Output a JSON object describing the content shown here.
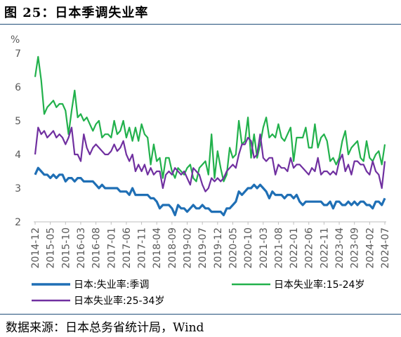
{
  "title": "图 25：日本季调失业率",
  "source": "数据来源：日本总务省统计局，Wind",
  "chart_data": {
    "type": "line",
    "ylabel": "%",
    "ylim": [
      2,
      7
    ],
    "y_ticks": [
      "2",
      "3",
      "4",
      "5",
      "6",
      "7"
    ],
    "categories": [
      "2014-12",
      "2015-01",
      "2015-02",
      "2015-03",
      "2015-04",
      "2015-05",
      "2015-06",
      "2015-07",
      "2015-08",
      "2015-09",
      "2015-10",
      "2015-11",
      "2015-12",
      "2016-01",
      "2016-02",
      "2016-03",
      "2016-04",
      "2016-05",
      "2016-06",
      "2016-07",
      "2016-08",
      "2016-09",
      "2016-10",
      "2016-11",
      "2016-12",
      "2017-01",
      "2017-02",
      "2017-03",
      "2017-04",
      "2017-05",
      "2017-06",
      "2017-07",
      "2017-08",
      "2017-09",
      "2017-10",
      "2017-11",
      "2017-12",
      "2018-01",
      "2018-02",
      "2018-03",
      "2018-04",
      "2018-05",
      "2018-06",
      "2018-07",
      "2018-08",
      "2018-09",
      "2018-10",
      "2018-11",
      "2018-12",
      "2019-01",
      "2019-02",
      "2019-03",
      "2019-04",
      "2019-05",
      "2019-06",
      "2019-07",
      "2019-08",
      "2019-09",
      "2019-10",
      "2019-11",
      "2019-12",
      "2020-01",
      "2020-02",
      "2020-03",
      "2020-04",
      "2020-05",
      "2020-06",
      "2020-07",
      "2020-08",
      "2020-09",
      "2020-10",
      "2020-11",
      "2020-12",
      "2021-01",
      "2021-02",
      "2021-03",
      "2021-04",
      "2021-05",
      "2021-06",
      "2021-07",
      "2021-08",
      "2021-09",
      "2021-10",
      "2021-11",
      "2021-12",
      "2022-01",
      "2022-02",
      "2022-03",
      "2022-04",
      "2022-05",
      "2022-06",
      "2022-07",
      "2022-08",
      "2022-09",
      "2022-10",
      "2022-11",
      "2022-12",
      "2023-01",
      "2023-02",
      "2023-03",
      "2023-04",
      "2023-05",
      "2023-06",
      "2023-07",
      "2023-08",
      "2023-09",
      "2023-10",
      "2023-11",
      "2023-12",
      "2024-01",
      "2024-02",
      "2024-03",
      "2024-04",
      "2024-05",
      "2024-06",
      "2024-07"
    ],
    "x_tick_labels": [
      "2014-12",
      "2015-05",
      "2015-10",
      "2016-03",
      "2016-08",
      "2017-01",
      "2017-06",
      "2017-11",
      "2018-04",
      "2018-09",
      "2019-02",
      "2019-07",
      "2019-12",
      "2020-05",
      "2020-10",
      "2021-03",
      "2021-08",
      "2022-01",
      "2022-06",
      "2022-11",
      "2023-04",
      "2023-09",
      "2024-02",
      "2024-07"
    ],
    "series": [
      {
        "name": "日本:失业率:季调",
        "color": "#1f6fb5",
        "values": [
          3.4,
          3.6,
          3.5,
          3.4,
          3.4,
          3.3,
          3.4,
          3.3,
          3.4,
          3.4,
          3.2,
          3.3,
          3.3,
          3.2,
          3.3,
          3.3,
          3.2,
          3.2,
          3.2,
          3.2,
          3.1,
          3.0,
          3.1,
          3.0,
          3.0,
          3.0,
          3.0,
          3.0,
          2.9,
          2.9,
          2.9,
          2.8,
          3.0,
          2.8,
          2.8,
          2.8,
          2.8,
          2.8,
          2.7,
          2.7,
          2.6,
          2.4,
          2.5,
          2.5,
          2.5,
          2.4,
          2.2,
          2.5,
          2.4,
          2.4,
          2.3,
          2.4,
          2.5,
          2.4,
          2.4,
          2.5,
          2.4,
          2.4,
          2.3,
          2.3,
          2.3,
          2.3,
          2.2,
          2.4,
          2.4,
          2.5,
          2.6,
          2.9,
          2.8,
          2.9,
          3.0,
          3.0,
          3.1,
          3.0,
          3.1,
          3.0,
          2.9,
          2.7,
          2.9,
          2.8,
          2.8,
          2.8,
          2.7,
          2.8,
          2.8,
          2.7,
          2.8,
          2.6,
          2.5,
          2.6,
          2.6,
          2.6,
          2.6,
          2.6,
          2.6,
          2.5,
          2.5,
          2.6,
          2.4,
          2.6,
          2.6,
          2.5,
          2.5,
          2.6,
          2.5,
          2.6,
          2.5,
          2.6,
          2.6,
          2.5,
          2.5,
          2.4,
          2.6,
          2.6,
          2.5,
          2.7
        ]
      },
      {
        "name": "日本失业率:15-24岁",
        "color": "#22b14c",
        "values": [
          6.3,
          6.9,
          6.2,
          5.2,
          5.4,
          5.5,
          5.6,
          5.4,
          5.5,
          5.5,
          5.3,
          4.6,
          5.3,
          5.9,
          5.1,
          5.2,
          5.0,
          5.1,
          4.9,
          4.7,
          4.9,
          5.0,
          4.5,
          4.6,
          4.6,
          4.5,
          5.0,
          4.6,
          4.7,
          5.0,
          4.5,
          4.8,
          4.4,
          4.8,
          4.4,
          4.9,
          4.6,
          4.5,
          3.7,
          4.3,
          3.8,
          3.9,
          3.3,
          3.9,
          3.9,
          3.5,
          3.3,
          3.6,
          3.5,
          3.4,
          3.6,
          3.7,
          3.3,
          3.2,
          3.6,
          3.7,
          3.8,
          3.4,
          4.6,
          3.3,
          4.1,
          3.6,
          3.2,
          3.4,
          4.2,
          3.9,
          4.0,
          5.0,
          4.3,
          4.4,
          5.1,
          3.9,
          4.6,
          3.9,
          4.3,
          4.8,
          5.1,
          4.5,
          4.6,
          4.5,
          4.9,
          4.5,
          4.4,
          4.6,
          4.8,
          3.8,
          4.5,
          4.5,
          4.5,
          4.8,
          4.2,
          4.2,
          4.9,
          4.2,
          4.5,
          4.6,
          4.4,
          3.8,
          3.9,
          3.7,
          3.9,
          4.4,
          4.7,
          4.0,
          4.2,
          4.3,
          4.4,
          3.9,
          3.8,
          4.4,
          3.9,
          3.8,
          4.0,
          4.1,
          3.7,
          4.3
        ]
      },
      {
        "name": "日本失业率:25-34岁",
        "color": "#7030a0",
        "values": [
          4.0,
          4.8,
          4.6,
          4.7,
          4.5,
          4.6,
          4.7,
          4.5,
          4.6,
          4.5,
          4.3,
          4.5,
          4.8,
          4.0,
          4.0,
          3.8,
          4.6,
          4.2,
          4.0,
          4.2,
          4.3,
          4.2,
          4.1,
          4.0,
          4.0,
          4.1,
          4.3,
          4.1,
          4.2,
          4.4,
          4.0,
          3.8,
          4.0,
          3.5,
          3.7,
          3.5,
          3.7,
          3.4,
          3.6,
          3.4,
          3.5,
          3.5,
          3.0,
          3.4,
          3.5,
          3.4,
          3.6,
          3.5,
          3.4,
          3.5,
          3.3,
          3.1,
          3.6,
          3.5,
          3.4,
          3.1,
          2.9,
          3.0,
          3.3,
          3.2,
          3.3,
          3.2,
          3.3,
          3.5,
          3.6,
          3.7,
          3.6,
          4.0,
          4.3,
          4.3,
          4.5,
          4.4,
          3.9,
          4.0,
          4.6,
          3.9,
          3.8,
          3.9,
          3.9,
          3.4,
          3.7,
          3.6,
          3.6,
          3.5,
          3.9,
          3.6,
          3.7,
          3.7,
          3.6,
          3.5,
          3.4,
          3.6,
          3.5,
          3.9,
          3.4,
          3.5,
          3.5,
          3.4,
          3.5,
          3.4,
          3.8,
          4.0,
          3.5,
          3.7,
          3.4,
          3.8,
          3.8,
          3.7,
          3.7,
          3.5,
          3.4,
          3.8,
          3.5,
          3.4,
          3.0,
          3.8
        ]
      }
    ]
  }
}
